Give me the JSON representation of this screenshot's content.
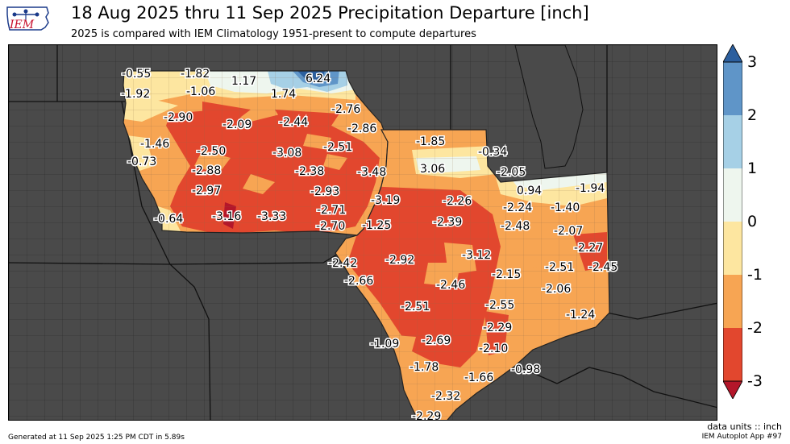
{
  "header": {
    "logo_text": "IEM",
    "title": "18 Aug 2025 thru 11 Sep 2025 Precipitation Departure [inch]",
    "subtitle": "2025 is compared with IEM Climatology 1951-present to compute departures"
  },
  "colorbar": {
    "ticks": [
      "3",
      "2",
      "1",
      "0",
      "-1",
      "-2",
      "-3"
    ],
    "colors": [
      "#2c5f9e",
      "#5f95c8",
      "#a6d0e6",
      "#eef6ee",
      "#fde6a0",
      "#f7a553",
      "#e2472e",
      "#b4162a"
    ]
  },
  "map": {
    "region": "Iowa, Illinois",
    "values": [
      {
        "v": "-0.55"
      },
      {
        "v": "-1.82"
      },
      {
        "v": "1.17"
      },
      {
        "v": "6.24"
      },
      {
        "v": "-1.92"
      },
      {
        "v": "-1.06"
      },
      {
        "v": "1.74"
      },
      {
        "v": "-2.76"
      },
      {
        "v": "-2.90"
      },
      {
        "v": "-2.09"
      },
      {
        "v": "-2.44"
      },
      {
        "v": "-2.86"
      },
      {
        "v": "-1.46"
      },
      {
        "v": "-2.50"
      },
      {
        "v": "-3.08"
      },
      {
        "v": "-2.51"
      },
      {
        "v": "-0.73"
      },
      {
        "v": "-2.88"
      },
      {
        "v": "-2.38"
      },
      {
        "v": "-3.48"
      },
      {
        "v": "-2.97"
      },
      {
        "v": "-2.93"
      },
      {
        "v": "-3.19"
      },
      {
        "v": "-0.64"
      },
      {
        "v": "-3.16"
      },
      {
        "v": "-3.33"
      },
      {
        "v": "-2.71"
      },
      {
        "v": "-2.70"
      },
      {
        "v": "-1.25"
      },
      {
        "v": "-1.85"
      },
      {
        "v": "-0.34"
      },
      {
        "v": "3.06"
      },
      {
        "v": "-2.05"
      },
      {
        "v": "0.94"
      },
      {
        "v": "-1.94"
      },
      {
        "v": "-2.26"
      },
      {
        "v": "-2.24"
      },
      {
        "v": "-1.40"
      },
      {
        "v": "-2.39"
      },
      {
        "v": "-2.48"
      },
      {
        "v": "-2.07"
      },
      {
        "v": "-2.27"
      },
      {
        "v": "-3.12"
      },
      {
        "v": "-2.42"
      },
      {
        "v": "-2.92"
      },
      {
        "v": "-2.51"
      },
      {
        "v": "-2.45"
      },
      {
        "v": "-2.66"
      },
      {
        "v": "-2.15"
      },
      {
        "v": "-2.46"
      },
      {
        "v": "-2.06"
      },
      {
        "v": "-2.51"
      },
      {
        "v": "-2.55"
      },
      {
        "v": "-1.24"
      },
      {
        "v": "-2.29"
      },
      {
        "v": "-1.09"
      },
      {
        "v": "-2.69"
      },
      {
        "v": "-2.10"
      },
      {
        "v": "-1.78"
      },
      {
        "v": "-0.98"
      },
      {
        "v": "-1.66"
      },
      {
        "v": "-2.32"
      },
      {
        "v": "-2.29"
      }
    ]
  },
  "footer": {
    "units": "data units :: inch",
    "app": "IEM Autoplot App #97",
    "generated": "Generated at 11 Sep 2025 1:25 PM CDT in 5.89s"
  }
}
